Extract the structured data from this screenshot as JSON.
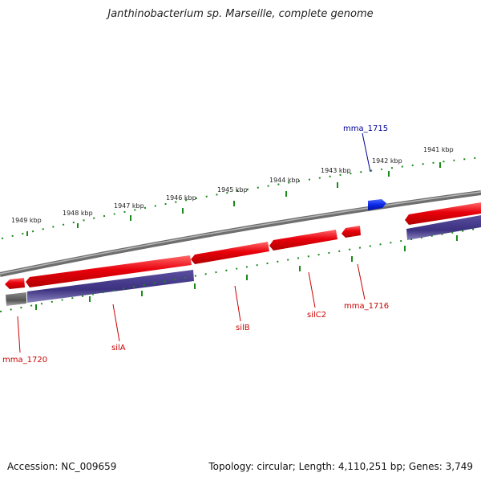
{
  "title": "Janthinobacterium sp. Marseille, complete genome",
  "accession": "Accession: NC_009659",
  "summary": "Topology: circular; Length: 4,110,251 bp; Genes: 3,749",
  "colors": {
    "forward_gene": "#e8000b",
    "reverse_gene": "#ee0000",
    "cds_bar": "#4a3f8a",
    "grey_bar": "#6a6a6a",
    "blue_gene": "#0a28e6",
    "backbone": "#8a8a8a",
    "ticks": "#1a8a1a",
    "red_label": "#cc0000",
    "blue_label": "#000099"
  },
  "scale_labels": [
    "1949 kbp",
    "1948 kbp",
    "1947 kbp",
    "1946 kbp",
    "1945 kbp",
    "1944 kbp",
    "1943 kbp",
    "1942 kbp",
    "1941 kbp"
  ],
  "gene_labels": {
    "mma_1715": "mma_1715",
    "mma_1716": "mma_1716",
    "silC2": "silC2",
    "silB": "silB",
    "silA": "silA",
    "mma_1720": "mma_1720"
  }
}
